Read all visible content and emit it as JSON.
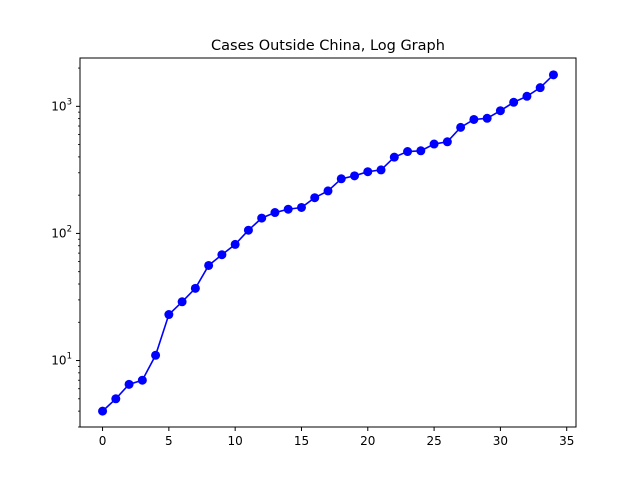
{
  "chart_data": {
    "type": "line",
    "title": "Cases Outside China, Log Graph",
    "xlabel": "",
    "ylabel": "",
    "yscale": "log",
    "xlim": [
      -1.7,
      35.7
    ],
    "ylim": [
      3.0,
      2400
    ],
    "xticks": [
      0,
      5,
      10,
      15,
      20,
      25,
      30,
      35
    ],
    "yticks": [
      {
        "value": 10,
        "base": "10",
        "exp": "1"
      },
      {
        "value": 100,
        "base": "10",
        "exp": "2"
      },
      {
        "value": 1000,
        "base": "10",
        "exp": "3"
      }
    ],
    "grid": false,
    "series": [
      {
        "color": "#0000ff",
        "marker": "circle",
        "x": [
          0,
          1,
          2,
          3,
          4,
          5,
          6,
          7,
          8,
          9,
          10,
          11,
          12,
          13,
          14,
          15,
          16,
          17,
          18,
          19,
          20,
          21,
          22,
          23,
          24,
          25,
          26,
          27,
          28,
          29,
          30,
          31,
          32,
          33,
          34
        ],
        "y": [
          4,
          5,
          6.5,
          7,
          11,
          23,
          29,
          37,
          56,
          68,
          82,
          106,
          132,
          146,
          155,
          160,
          191,
          216,
          269,
          284,
          306,
          316,
          398,
          441,
          447,
          505,
          526,
          683,
          788,
          805,
          924,
          1076,
          1200,
          1402,
          1769
        ]
      }
    ]
  }
}
